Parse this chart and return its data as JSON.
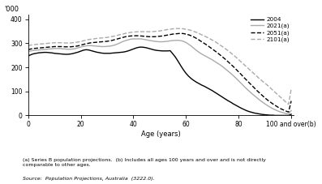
{
  "ylabel": "'000",
  "xlabel": "Age (years)",
  "footnote1": "(a) Series B population projections.  (b) Includes all ages 100 years and over and is not directly",
  "footnote2": "comparable to other ages.",
  "source": "Source:  Population Projections, Australia  (3222.0).",
  "xlim": [
    0,
    101
  ],
  "ylim": [
    0,
    420
  ],
  "yticks": [
    0,
    100,
    200,
    300,
    400
  ],
  "xtick_labels": [
    "0",
    "20",
    "40",
    "60",
    "80",
    "100 and over(b)"
  ],
  "xtick_positions": [
    0,
    20,
    40,
    60,
    80,
    100
  ],
  "series_order": [
    "2004",
    "2021(a)",
    "2051(a)",
    "2101(a)"
  ],
  "series": {
    "2004": {
      "color": "#000000",
      "linestyle": "solid",
      "linewidth": 1.0,
      "ages": [
        0,
        1,
        2,
        3,
        4,
        5,
        6,
        7,
        8,
        9,
        10,
        11,
        12,
        13,
        14,
        15,
        16,
        17,
        18,
        19,
        20,
        21,
        22,
        23,
        24,
        25,
        26,
        27,
        28,
        29,
        30,
        31,
        32,
        33,
        34,
        35,
        36,
        37,
        38,
        39,
        40,
        41,
        42,
        43,
        44,
        45,
        46,
        47,
        48,
        49,
        50,
        51,
        52,
        53,
        54,
        55,
        56,
        57,
        58,
        59,
        60,
        61,
        62,
        63,
        64,
        65,
        66,
        67,
        68,
        69,
        70,
        71,
        72,
        73,
        74,
        75,
        76,
        77,
        78,
        79,
        80,
        81,
        82,
        83,
        84,
        85,
        86,
        87,
        88,
        89,
        90,
        91,
        92,
        93,
        94,
        95,
        96,
        97,
        98,
        99,
        100
      ],
      "values": [
        247,
        252,
        256,
        258,
        260,
        261,
        262,
        262,
        261,
        260,
        258,
        257,
        256,
        255,
        254,
        254,
        255,
        257,
        260,
        263,
        267,
        271,
        273,
        272,
        269,
        266,
        263,
        261,
        259,
        258,
        258,
        258,
        259,
        260,
        261,
        262,
        263,
        265,
        268,
        272,
        276,
        280,
        283,
        284,
        283,
        281,
        278,
        275,
        272,
        270,
        269,
        268,
        268,
        268,
        269,
        256,
        242,
        225,
        207,
        190,
        175,
        163,
        153,
        145,
        138,
        132,
        126,
        121,
        115,
        109,
        103,
        96,
        89,
        82,
        75,
        68,
        61,
        55,
        48,
        42,
        36,
        30,
        25,
        20,
        16,
        13,
        10,
        8,
        6,
        4,
        3,
        2,
        1,
        1,
        0,
        0,
        0,
        0,
        0,
        0,
        5
      ]
    },
    "2021(a)": {
      "color": "#aaaaaa",
      "linestyle": "solid",
      "linewidth": 1.0,
      "ages": [
        0,
        1,
        2,
        3,
        4,
        5,
        6,
        7,
        8,
        9,
        10,
        11,
        12,
        13,
        14,
        15,
        16,
        17,
        18,
        19,
        20,
        21,
        22,
        23,
        24,
        25,
        26,
        27,
        28,
        29,
        30,
        31,
        32,
        33,
        34,
        35,
        36,
        37,
        38,
        39,
        40,
        41,
        42,
        43,
        44,
        45,
        46,
        47,
        48,
        49,
        50,
        51,
        52,
        53,
        54,
        55,
        56,
        57,
        58,
        59,
        60,
        61,
        62,
        63,
        64,
        65,
        66,
        67,
        68,
        69,
        70,
        71,
        72,
        73,
        74,
        75,
        76,
        77,
        78,
        79,
        80,
        81,
        82,
        83,
        84,
        85,
        86,
        87,
        88,
        89,
        90,
        91,
        92,
        93,
        94,
        95,
        96,
        97,
        98,
        99,
        100
      ],
      "values": [
        265,
        268,
        270,
        271,
        272,
        273,
        274,
        275,
        276,
        277,
        278,
        278,
        278,
        277,
        276,
        275,
        275,
        276,
        278,
        281,
        284,
        287,
        289,
        290,
        290,
        289,
        288,
        287,
        286,
        286,
        287,
        288,
        290,
        293,
        297,
        302,
        307,
        311,
        314,
        317,
        318,
        318,
        318,
        318,
        316,
        314,
        312,
        310,
        308,
        307,
        306,
        306,
        307,
        308,
        310,
        311,
        312,
        312,
        311,
        308,
        303,
        296,
        288,
        279,
        270,
        262,
        255,
        249,
        243,
        237,
        231,
        224,
        217,
        210,
        202,
        193,
        184,
        175,
        165,
        155,
        144,
        133,
        122,
        111,
        101,
        91,
        82,
        73,
        64,
        56,
        48,
        41,
        34,
        28,
        23,
        18,
        14,
        11,
        8,
        6,
        20
      ]
    },
    "2051(a)": {
      "color": "#000000",
      "linestyle": "dashed",
      "linewidth": 1.0,
      "ages": [
        0,
        1,
        2,
        3,
        4,
        5,
        6,
        7,
        8,
        9,
        10,
        11,
        12,
        13,
        14,
        15,
        16,
        17,
        18,
        19,
        20,
        21,
        22,
        23,
        24,
        25,
        26,
        27,
        28,
        29,
        30,
        31,
        32,
        33,
        34,
        35,
        36,
        37,
        38,
        39,
        40,
        41,
        42,
        43,
        44,
        45,
        46,
        47,
        48,
        49,
        50,
        51,
        52,
        53,
        54,
        55,
        56,
        57,
        58,
        59,
        60,
        61,
        62,
        63,
        64,
        65,
        66,
        67,
        68,
        69,
        70,
        71,
        72,
        73,
        74,
        75,
        76,
        77,
        78,
        79,
        80,
        81,
        82,
        83,
        84,
        85,
        86,
        87,
        88,
        89,
        90,
        91,
        92,
        93,
        94,
        95,
        96,
        97,
        98,
        99,
        100
      ],
      "values": [
        273,
        276,
        278,
        279,
        280,
        281,
        282,
        283,
        284,
        285,
        286,
        286,
        286,
        286,
        285,
        285,
        285,
        286,
        287,
        289,
        292,
        295,
        298,
        300,
        302,
        303,
        304,
        305,
        306,
        307,
        308,
        310,
        312,
        315,
        318,
        321,
        324,
        327,
        329,
        330,
        331,
        331,
        331,
        330,
        329,
        328,
        327,
        327,
        327,
        328,
        329,
        330,
        332,
        334,
        336,
        338,
        339,
        340,
        341,
        340,
        338,
        335,
        331,
        326,
        320,
        313,
        306,
        299,
        292,
        284,
        276,
        268,
        260,
        251,
        242,
        233,
        223,
        213,
        203,
        192,
        181,
        170,
        158,
        147,
        136,
        125,
        114,
        103,
        93,
        83,
        73,
        64,
        56,
        48,
        41,
        34,
        28,
        23,
        18,
        14,
        60
      ]
    },
    "2101(a)": {
      "color": "#aaaaaa",
      "linestyle": "dashed",
      "linewidth": 1.0,
      "ages": [
        0,
        1,
        2,
        3,
        4,
        5,
        6,
        7,
        8,
        9,
        10,
        11,
        12,
        13,
        14,
        15,
        16,
        17,
        18,
        19,
        20,
        21,
        22,
        23,
        24,
        25,
        26,
        27,
        28,
        29,
        30,
        31,
        32,
        33,
        34,
        35,
        36,
        37,
        38,
        39,
        40,
        41,
        42,
        43,
        44,
        45,
        46,
        47,
        48,
        49,
        50,
        51,
        52,
        53,
        54,
        55,
        56,
        57,
        58,
        59,
        60,
        61,
        62,
        63,
        64,
        65,
        66,
        67,
        68,
        69,
        70,
        71,
        72,
        73,
        74,
        75,
        76,
        77,
        78,
        79,
        80,
        81,
        82,
        83,
        84,
        85,
        86,
        87,
        88,
        89,
        90,
        91,
        92,
        93,
        94,
        95,
        96,
        97,
        98,
        99,
        100
      ],
      "values": [
        290,
        292,
        294,
        295,
        296,
        297,
        298,
        299,
        300,
        301,
        302,
        302,
        302,
        302,
        301,
        301,
        301,
        302,
        303,
        305,
        307,
        310,
        313,
        315,
        317,
        318,
        320,
        321,
        322,
        323,
        324,
        326,
        328,
        330,
        333,
        336,
        338,
        341,
        343,
        345,
        346,
        347,
        348,
        348,
        348,
        348,
        348,
        348,
        349,
        350,
        351,
        353,
        355,
        357,
        358,
        360,
        361,
        361,
        361,
        360,
        358,
        356,
        353,
        349,
        345,
        340,
        335,
        330,
        325,
        319,
        313,
        307,
        300,
        292,
        285,
        277,
        269,
        260,
        251,
        242,
        232,
        222,
        212,
        202,
        192,
        182,
        172,
        162,
        152,
        143,
        134,
        125,
        115,
        105,
        95,
        85,
        75,
        65,
        55,
        46,
        110
      ]
    }
  }
}
